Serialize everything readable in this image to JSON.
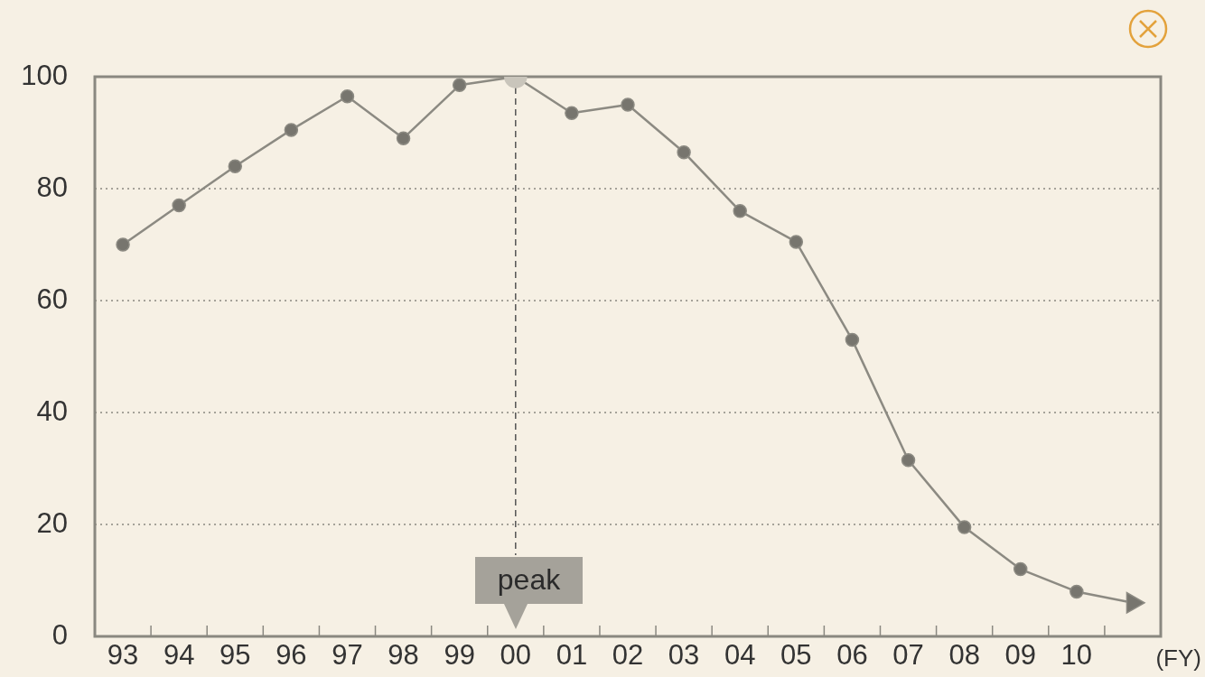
{
  "chart_data": {
    "type": "line",
    "xlabel": "(FY)",
    "categories": [
      "93",
      "94",
      "95",
      "96",
      "97",
      "98",
      "99",
      "00",
      "01",
      "02",
      "03",
      "04",
      "05",
      "06",
      "07",
      "08",
      "09",
      "10",
      null
    ],
    "series": [
      {
        "color": "#8c8a82",
        "values": [
          70,
          77,
          84,
          90.5,
          96.5,
          89,
          98.5,
          100,
          93.5,
          95,
          86.5,
          76,
          70.5,
          53,
          31.5,
          19.5,
          12,
          8,
          6
        ]
      }
    ],
    "ylim": [
      0,
      100
    ],
    "yticks": [
      0,
      20,
      40,
      60,
      80,
      100
    ],
    "grid": "y",
    "marker": "circle",
    "line_style": "solid",
    "legend": false,
    "ref_lines": [
      {
        "axis": "x",
        "value": "00",
        "label": "peak",
        "line_style": "dashed",
        "color": "#555555"
      }
    ]
  }
}
